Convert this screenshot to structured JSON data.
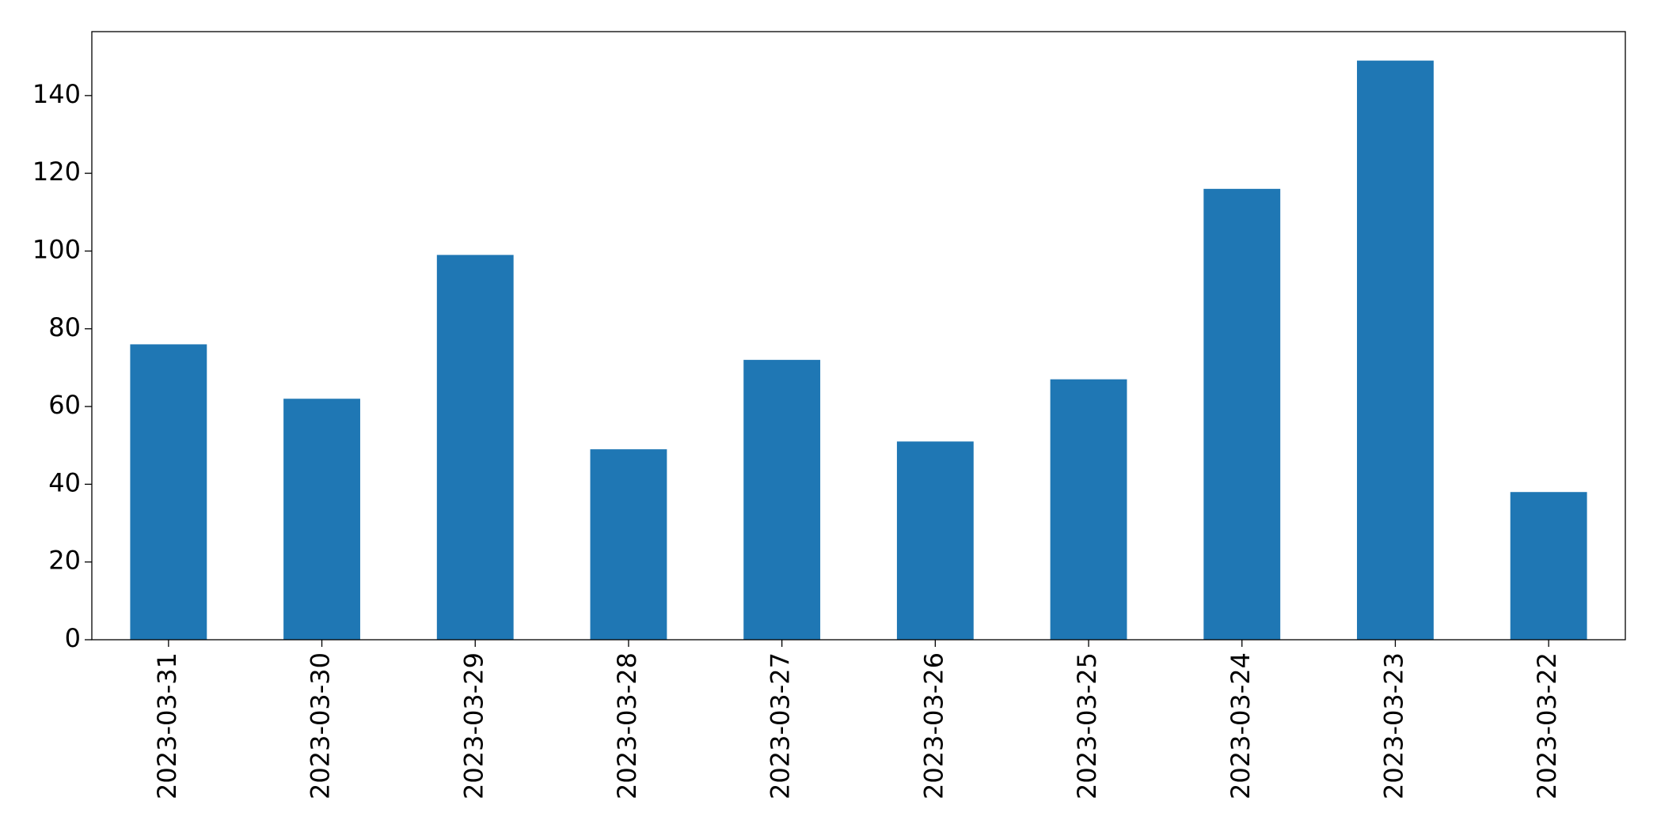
{
  "chart_data": {
    "type": "bar",
    "categories": [
      "2023-03-31",
      "2023-03-30",
      "2023-03-29",
      "2023-03-28",
      "2023-03-27",
      "2023-03-26",
      "2023-03-25",
      "2023-03-24",
      "2023-03-23",
      "2023-03-22"
    ],
    "values": [
      76,
      62,
      99,
      49,
      72,
      51,
      67,
      116,
      149,
      38
    ],
    "color": "#1f77b4",
    "ylim": [
      0,
      156.45
    ],
    "yticks": [
      0,
      20,
      40,
      60,
      80,
      100,
      120,
      140
    ],
    "grid": false
  }
}
